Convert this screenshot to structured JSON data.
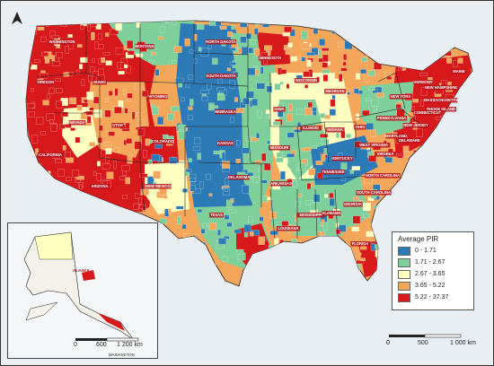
{
  "north_arrow_label": "",
  "legend": {
    "title": "Average PIR",
    "classes": [
      {
        "label": "0 - 1.71",
        "color": "#2c7bb6"
      },
      {
        "label": "1.71 - 2.67",
        "color": "#7fcf9a"
      },
      {
        "label": "2.67 - 3.65",
        "color": "#ffffbf"
      },
      {
        "label": "3.65 - 5.22",
        "color": "#f4a65a"
      },
      {
        "label": "5.22 - 37.37",
        "color": "#d7191c"
      }
    ]
  },
  "main_scale": {
    "t0": "0",
    "t1": "500",
    "t2": "1 000 km"
  },
  "inset_scale": {
    "t0": "0",
    "t1": "600",
    "t2": "1 200 km"
  },
  "inset_labels": {
    "alaska": "ALASKA",
    "washington": "WASHINGTON"
  },
  "states": {
    "washington": "WASHINGTON",
    "montana": "MONTANA",
    "north_dakota": "NORTH DAKOTA",
    "minnesota": "MINNESOTA",
    "oregon": "OREGON",
    "idaho": "IDAHO",
    "wyoming": "WYOMING",
    "south_dakota": "SOUTH DAKOTA",
    "wisconsin": "WISCONSIN",
    "michigan": "MICHIGAN",
    "maine": "MAINE",
    "vermont": "VERMONT",
    "new_hampshire": "NEW HAMPSHIRE",
    "new_york": "NEW YORK",
    "massachusetts": "MASSACHUSETTS",
    "rhode_island": "RHODE ISLAND",
    "connecticut": "CONNECTICUT",
    "pennsylvania": "PENNSYLVANIA",
    "new_jersey": "NEW JERSEY",
    "iowa": "IOWA",
    "nebraska": "NEBRASKA",
    "nevada": "NEVADA",
    "utah": "UTAH",
    "colorado": "COLORADO",
    "illinois": "ILLINOIS",
    "indiana": "INDIANA",
    "ohio": "OHIO",
    "maryland": "MARYLAND",
    "delaware": "DELAWARE",
    "west_virginia": "WEST VIRGINIA",
    "virginia": "VIRGINIA",
    "kansas": "KANSAS",
    "missouri": "MISSOURI",
    "kentucky": "KENTUCKY",
    "california": "CALIFORNIA",
    "arizona": "ARIZONA",
    "new_mexico": "NEW MEXICO",
    "oklahoma": "OKLAHOMA",
    "tennessee": "TENNESSEE",
    "north_carolina": "NORTH CAROLINA",
    "arkansas": "ARKANSAS",
    "south_carolina": "SOUTH CAROLINA",
    "texas": "TEXAS",
    "mississippi": "MISSISSIPPI",
    "alabama": "ALABAMA",
    "georgia": "GEORGIA",
    "louisiana": "LOUISIANA",
    "florida": "FLORIDA"
  }
}
